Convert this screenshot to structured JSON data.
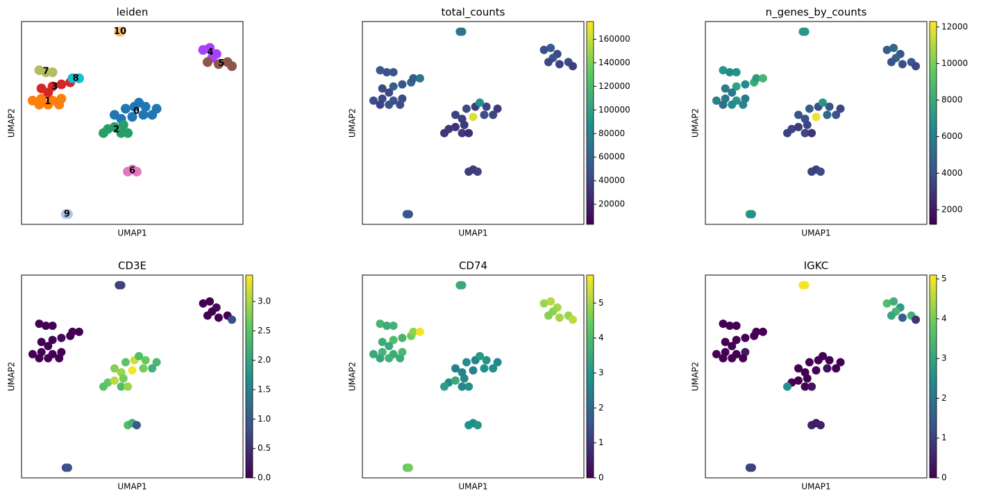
{
  "chart_data": [
    {
      "type": "scatter",
      "title": "leiden",
      "x_label": "UMAP1",
      "y_label": "UMAP2",
      "xlim": [
        0,
        100
      ],
      "ylim": [
        0,
        100
      ],
      "legend_loc": "on data",
      "series": [
        {
          "name": "0",
          "color": "#1f77b4",
          "x": [
            42,
            47,
            51,
            56,
            61,
            50,
            55,
            45,
            53,
            59
          ],
          "y": [
            54,
            57,
            58,
            58,
            57,
            53,
            54,
            52,
            60,
            54
          ]
        },
        {
          "name": "1",
          "color": "#ff7f0e",
          "x": [
            5,
            9,
            14,
            18,
            8,
            12,
            17
          ],
          "y": [
            61,
            62,
            61,
            62,
            59,
            59,
            59
          ]
        },
        {
          "name": "2",
          "color": "#279e68",
          "x": [
            39,
            42,
            45,
            48,
            37,
            46
          ],
          "y": [
            47,
            48,
            45,
            45,
            45,
            49
          ]
        },
        {
          "name": "3",
          "color": "#d62728",
          "x": [
            9,
            14,
            18,
            22,
            12
          ],
          "y": [
            67,
            68,
            69,
            70,
            65
          ]
        },
        {
          "name": "4",
          "color": "#aa40fc",
          "x": [
            82,
            85,
            88,
            86
          ],
          "y": [
            86,
            87,
            84,
            82
          ]
        },
        {
          "name": "5",
          "color": "#8c564b",
          "x": [
            84,
            89,
            93,
            95
          ],
          "y": [
            80,
            79,
            80,
            78
          ]
        },
        {
          "name": "6",
          "color": "#e377c2",
          "x": [
            48,
            50,
            52
          ],
          "y": [
            26,
            27,
            26
          ]
        },
        {
          "name": "7",
          "color": "#b5bd61",
          "x": [
            8,
            11,
            14
          ],
          "y": [
            76,
            75,
            75
          ]
        },
        {
          "name": "8",
          "color": "#17becf",
          "x": [
            23,
            26
          ],
          "y": [
            72,
            72
          ]
        },
        {
          "name": "9",
          "color": "#aec7e8",
          "x": [
            20,
            21
          ],
          "y": [
            5,
            5
          ]
        },
        {
          "name": "10",
          "color": "#ffbb78",
          "x": [
            44,
            45
          ],
          "y": [
            95,
            95
          ]
        }
      ]
    },
    {
      "type": "scatter",
      "title": "total_counts",
      "x_label": "UMAP1",
      "y_label": "UMAP2",
      "xlim": [
        0,
        100
      ],
      "ylim": [
        0,
        100
      ],
      "colormap": "viridis",
      "clim": [
        3000,
        175000
      ],
      "cticks": [
        20000,
        40000,
        60000,
        80000,
        100000,
        120000,
        140000,
        160000
      ],
      "x": [
        42,
        47,
        51,
        56,
        61,
        50,
        55,
        45,
        53,
        59,
        5,
        9,
        14,
        18,
        8,
        12,
        17,
        39,
        42,
        45,
        48,
        37,
        46,
        9,
        14,
        18,
        22,
        12,
        82,
        85,
        88,
        86,
        84,
        89,
        93,
        95,
        48,
        50,
        52,
        8,
        11,
        14,
        23,
        26,
        20,
        21,
        44,
        45
      ],
      "y": [
        54,
        57,
        58,
        58,
        57,
        53,
        54,
        52,
        60,
        54,
        61,
        62,
        61,
        62,
        59,
        59,
        59,
        47,
        48,
        45,
        45,
        45,
        49,
        67,
        68,
        69,
        70,
        65,
        86,
        87,
        84,
        82,
        80,
        79,
        80,
        78,
        26,
        27,
        26,
        76,
        75,
        75,
        72,
        72,
        5,
        5,
        95,
        95
      ],
      "values": [
        38000,
        42000,
        35000,
        40000,
        33000,
        165000,
        45000,
        36000,
        90000,
        39000,
        45000,
        40000,
        50000,
        42000,
        38000,
        47000,
        44000,
        32000,
        30000,
        34000,
        28000,
        31000,
        33000,
        42000,
        55000,
        48000,
        60000,
        40000,
        45000,
        50000,
        42000,
        48000,
        40000,
        38000,
        42000,
        36000,
        35000,
        33000,
        37000,
        50000,
        46000,
        48000,
        52000,
        70000,
        50000,
        48000,
        75000,
        70000
      ]
    },
    {
      "type": "scatter",
      "title": "n_genes_by_counts",
      "x_label": "UMAP1",
      "y_label": "UMAP2",
      "xlim": [
        0,
        100
      ],
      "ylim": [
        0,
        100
      ],
      "colormap": "viridis",
      "clim": [
        1200,
        12300
      ],
      "cticks": [
        2000,
        4000,
        6000,
        8000,
        10000,
        12000
      ],
      "x": [
        42,
        47,
        51,
        56,
        61,
        50,
        55,
        45,
        53,
        59,
        5,
        9,
        14,
        18,
        8,
        12,
        17,
        39,
        42,
        45,
        48,
        37,
        46,
        9,
        14,
        18,
        22,
        12,
        82,
        85,
        88,
        86,
        84,
        89,
        93,
        95,
        48,
        50,
        52,
        8,
        11,
        14,
        23,
        26,
        20,
        21,
        44,
        45
      ],
      "y": [
        54,
        57,
        58,
        58,
        57,
        53,
        54,
        52,
        60,
        54,
        61,
        62,
        61,
        62,
        59,
        59,
        59,
        47,
        48,
        45,
        45,
        45,
        49,
        67,
        68,
        69,
        70,
        65,
        86,
        87,
        84,
        82,
        80,
        79,
        80,
        78,
        26,
        27,
        26,
        76,
        75,
        75,
        72,
        72,
        5,
        5,
        95,
        95
      ],
      "values": [
        4000,
        4500,
        3800,
        4200,
        3600,
        12000,
        5000,
        3900,
        7000,
        4100,
        6000,
        5500,
        7000,
        5800,
        5200,
        6500,
        6200,
        3500,
        3200,
        3600,
        3000,
        3400,
        3500,
        5800,
        7500,
        6500,
        8000,
        5600,
        4500,
        5000,
        4200,
        4800,
        4000,
        3800,
        4200,
        3600,
        3500,
        3300,
        3700,
        7000,
        6500,
        6800,
        7200,
        8500,
        7000,
        6800,
        7500,
        7000
      ]
    },
    {
      "type": "scatter",
      "title": "CD3E",
      "x_label": "UMAP1",
      "y_label": "UMAP2",
      "xlim": [
        0,
        100
      ],
      "ylim": [
        0,
        100
      ],
      "colormap": "viridis",
      "clim": [
        0,
        3.45
      ],
      "cticks": [
        {
          "value": 0,
          "label": "0.0"
        },
        0.5,
        {
          "value": 1,
          "label": "1.0"
        },
        1.5,
        {
          "value": 2,
          "label": "2.0"
        },
        2.5,
        {
          "value": 3,
          "label": "3.0"
        }
      ],
      "x": [
        42,
        47,
        51,
        56,
        61,
        50,
        55,
        45,
        53,
        59,
        5,
        9,
        14,
        18,
        8,
        12,
        17,
        39,
        42,
        45,
        48,
        37,
        46,
        9,
        14,
        18,
        22,
        12,
        82,
        85,
        88,
        86,
        84,
        89,
        93,
        95,
        48,
        50,
        52,
        8,
        11,
        14,
        23,
        26,
        20,
        21,
        44,
        45
      ],
      "y": [
        54,
        57,
        58,
        58,
        57,
        53,
        54,
        52,
        60,
        54,
        61,
        62,
        61,
        62,
        59,
        59,
        59,
        47,
        48,
        45,
        45,
        45,
        49,
        67,
        68,
        69,
        70,
        65,
        86,
        87,
        84,
        82,
        80,
        79,
        80,
        78,
        26,
        27,
        26,
        76,
        75,
        75,
        72,
        72,
        5,
        5,
        95,
        95
      ],
      "values": [
        2.8,
        2.5,
        3.2,
        2.6,
        2.3,
        3.4,
        2.7,
        2.9,
        2.4,
        2.2,
        0,
        0,
        0,
        0,
        0,
        0,
        0,
        2.6,
        3.1,
        2.4,
        2.9,
        2.5,
        2.7,
        0,
        0,
        0.1,
        0,
        0,
        0,
        0,
        0.1,
        0,
        0,
        0,
        0,
        0.8,
        2.4,
        2.2,
        1.0,
        0,
        0,
        0,
        0,
        0,
        0.8,
        0.9,
        0.6,
        0.7
      ]
    },
    {
      "type": "scatter",
      "title": "CD74",
      "x_label": "UMAP1",
      "y_label": "UMAP2",
      "xlim": [
        0,
        100
      ],
      "ylim": [
        0,
        100
      ],
      "colormap": "viridis",
      "clim": [
        0,
        5.8
      ],
      "cticks": [
        0,
        1,
        2,
        3,
        4,
        5
      ],
      "x": [
        42,
        47,
        51,
        56,
        61,
        50,
        55,
        45,
        53,
        59,
        5,
        9,
        14,
        18,
        8,
        12,
        17,
        39,
        42,
        45,
        48,
        37,
        46,
        9,
        14,
        18,
        22,
        12,
        82,
        85,
        88,
        86,
        84,
        89,
        93,
        95,
        48,
        50,
        52,
        8,
        11,
        14,
        23,
        26,
        20,
        21,
        44,
        45
      ],
      "y": [
        54,
        57,
        58,
        58,
        57,
        53,
        54,
        52,
        60,
        54,
        61,
        62,
        61,
        62,
        59,
        59,
        59,
        47,
        48,
        45,
        45,
        45,
        49,
        67,
        68,
        69,
        70,
        65,
        86,
        87,
        84,
        82,
        80,
        79,
        80,
        78,
        26,
        27,
        26,
        76,
        75,
        75,
        72,
        72,
        5,
        5,
        95,
        95
      ],
      "values": [
        2.5,
        2.8,
        2.6,
        3.0,
        2.7,
        2.5,
        2.9,
        2.6,
        3.1,
        2.8,
        3.5,
        3.8,
        3.6,
        3.9,
        3.4,
        3.7,
        3.6,
        2.8,
        3.5,
        2.6,
        2.9,
        3.2,
        2.7,
        3.6,
        4.0,
        3.8,
        4.5,
        3.5,
        4.9,
        5.1,
        5.0,
        4.8,
        4.7,
        5.0,
        4.9,
        5.2,
        2.9,
        2.8,
        3.0,
        3.8,
        3.6,
        3.7,
        4.8,
        5.7,
        4.4,
        4.5,
        3.6,
        3.5
      ]
    },
    {
      "type": "scatter",
      "title": "IGKC",
      "x_label": "UMAP1",
      "y_label": "UMAP2",
      "xlim": [
        0,
        100
      ],
      "ylim": [
        0,
        100
      ],
      "colormap": "viridis",
      "clim": [
        0,
        5.1
      ],
      "cticks": [
        0,
        1,
        2,
        3,
        4,
        5
      ],
      "x": [
        42,
        47,
        51,
        56,
        61,
        50,
        55,
        45,
        53,
        59,
        5,
        9,
        14,
        18,
        8,
        12,
        17,
        39,
        42,
        45,
        48,
        37,
        46,
        9,
        14,
        18,
        22,
        12,
        82,
        85,
        88,
        86,
        84,
        89,
        93,
        95,
        48,
        50,
        52,
        8,
        11,
        14,
        23,
        26,
        20,
        21,
        44,
        45
      ],
      "y": [
        54,
        57,
        58,
        58,
        57,
        53,
        54,
        52,
        60,
        54,
        61,
        62,
        61,
        62,
        59,
        59,
        59,
        47,
        48,
        45,
        45,
        45,
        49,
        67,
        68,
        69,
        70,
        65,
        86,
        87,
        84,
        82,
        80,
        79,
        80,
        78,
        26,
        27,
        26,
        76,
        75,
        75,
        72,
        72,
        5,
        5,
        95,
        95
      ],
      "values": [
        0,
        0,
        0,
        0,
        0,
        0,
        0.2,
        0,
        0,
        0,
        0,
        0,
        0,
        0.4,
        0,
        0,
        0,
        0,
        0,
        0,
        0.3,
        2.6,
        0,
        0,
        0,
        0,
        0,
        0,
        3.5,
        3.2,
        2.8,
        3.4,
        3.0,
        1.5,
        3.3,
        0.8,
        0.5,
        0.4,
        0.5,
        0,
        0,
        0,
        0,
        0,
        1.0,
        1.0,
        5.0,
        5.0
      ]
    }
  ]
}
